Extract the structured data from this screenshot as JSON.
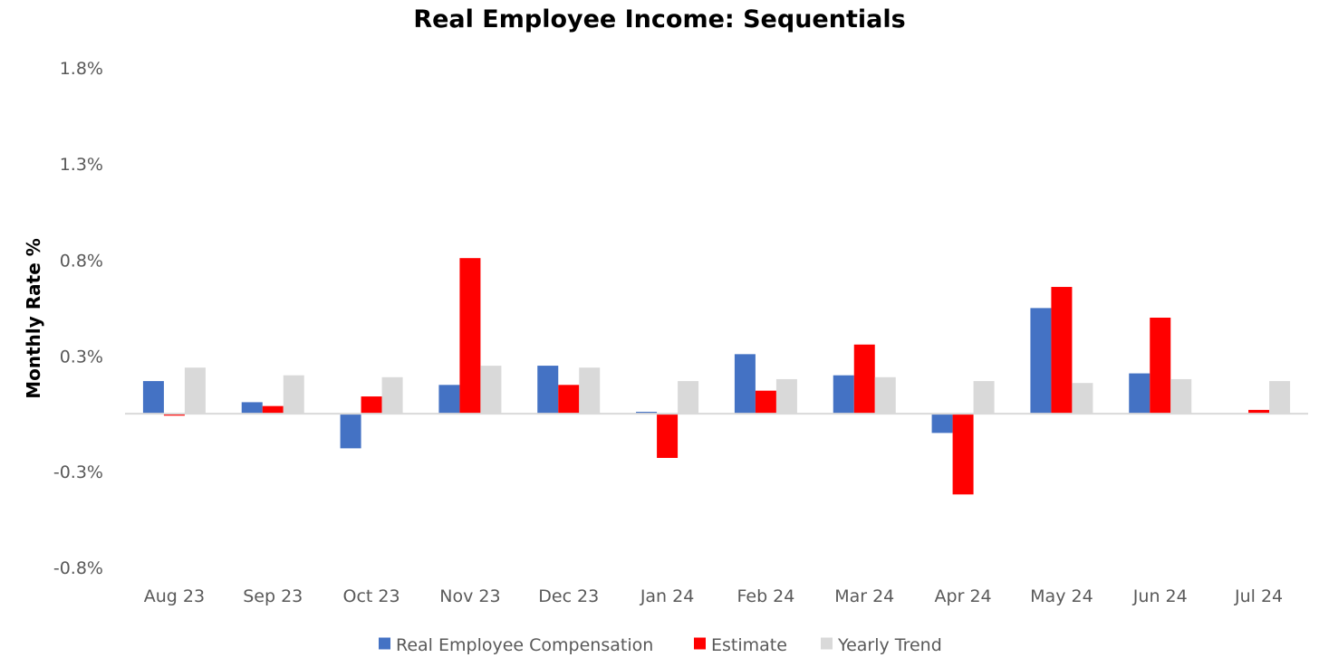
{
  "chart_data": {
    "type": "bar",
    "title": "Real Employee Income: Sequentials",
    "xlabel": "",
    "ylabel": "Monthly Rate %",
    "ylim": [
      -0.8,
      1.8
    ],
    "yticks": [
      "1.8%",
      "1.3%",
      "0.8%",
      "0.3%",
      "-0.3%",
      "-0.8%"
    ],
    "ytick_values": [
      1.8,
      1.3,
      0.8,
      0.3,
      -0.3,
      -0.8
    ],
    "grid": false,
    "legend_position": "bottom",
    "categories": [
      "Aug 23",
      "Sep 23",
      "Oct 23",
      "Nov 23",
      "Dec 23",
      "Jan 24",
      "Feb 24",
      "Mar 24",
      "Apr 24",
      "May 24",
      "Jun 24",
      "Jul 24"
    ],
    "series": [
      {
        "name": "Real Employee Compensation",
        "color": "#4472C4",
        "values": [
          0.17,
          0.06,
          -0.18,
          0.15,
          0.25,
          0.01,
          0.31,
          0.2,
          -0.1,
          0.55,
          0.21,
          null
        ]
      },
      {
        "name": "Estimate",
        "color": "#FF0000",
        "values": [
          -0.01,
          0.04,
          0.09,
          0.81,
          0.15,
          -0.23,
          0.12,
          0.36,
          -0.42,
          0.66,
          0.5,
          0.02
        ]
      },
      {
        "name": "Yearly Trend",
        "color": "#D9D9D9",
        "values": [
          0.24,
          0.2,
          0.19,
          0.25,
          0.24,
          0.17,
          0.18,
          0.19,
          0.17,
          0.16,
          0.18,
          0.17
        ]
      }
    ]
  }
}
